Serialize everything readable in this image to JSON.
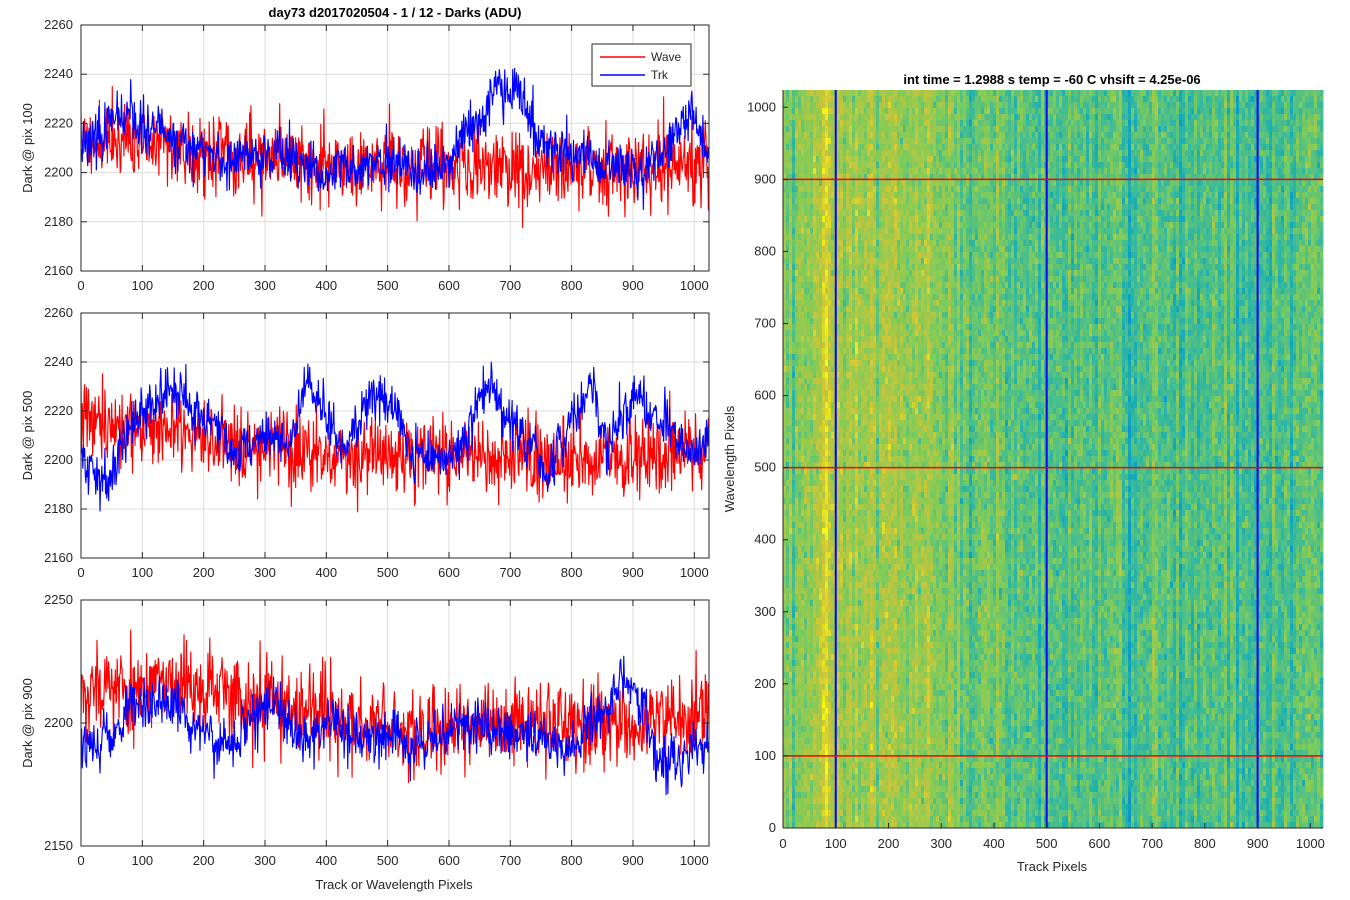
{
  "window": {
    "title": "day73 d2017020504 - 1 / 12 - Darks (ADU)"
  },
  "chart_data": [
    {
      "type": "line",
      "title": "day73 d2017020504 - 1 / 12 - Darks (ADU)",
      "xlabel": "",
      "ylabel": "Dark @ pix 100",
      "xlim": [
        0,
        1024
      ],
      "ylim": [
        2160,
        2260
      ],
      "xticks": [
        0,
        100,
        200,
        300,
        400,
        500,
        600,
        700,
        800,
        900,
        1000
      ],
      "yticks": [
        2160,
        2180,
        2200,
        2220,
        2240,
        2260
      ],
      "grid": true,
      "legend": "top-right",
      "series": [
        {
          "name": "Wave",
          "color": "#ff0000",
          "mean": 2206,
          "noise": 8,
          "seed": 11,
          "drift": 4,
          "walk": 0.15,
          "highlights": [
            [
              0.0,
              2214
            ],
            [
              0.1,
              2212
            ],
            [
              0.2,
              2209
            ],
            [
              0.3,
              2206
            ],
            [
              0.4,
              2204
            ],
            [
              0.5,
              2203
            ],
            [
              0.6,
              2203
            ],
            [
              0.7,
              2202
            ],
            [
              0.8,
              2202
            ],
            [
              0.9,
              2201
            ],
            [
              1.0,
              2203
            ]
          ]
        },
        {
          "name": "Trk",
          "color": "#0000ff",
          "mean": 2208,
          "noise": 5,
          "seed": 23,
          "drift": 6,
          "walk": 0.45,
          "highlights": [
            [
              0.0,
              2212
            ],
            [
              0.05,
              2220
            ],
            [
              0.12,
              2216
            ],
            [
              0.17,
              2212
            ],
            [
              0.23,
              2203
            ],
            [
              0.28,
              2208
            ],
            [
              0.33,
              2207
            ],
            [
              0.38,
              2197
            ],
            [
              0.45,
              2203
            ],
            [
              0.5,
              2202
            ],
            [
              0.53,
              2195
            ],
            [
              0.59,
              2205
            ],
            [
              0.64,
              2224
            ],
            [
              0.66,
              2238
            ],
            [
              0.7,
              2232
            ],
            [
              0.73,
              2210
            ],
            [
              0.8,
              2205
            ],
            [
              0.88,
              2200
            ],
            [
              0.93,
              2210
            ],
            [
              0.97,
              2228
            ],
            [
              1.0,
              2208
            ]
          ]
        }
      ]
    },
    {
      "type": "line",
      "title": "",
      "xlabel": "",
      "ylabel": "Dark @ pix 500",
      "xlim": [
        0,
        1024
      ],
      "ylim": [
        2160,
        2260
      ],
      "xticks": [
        0,
        100,
        200,
        300,
        400,
        500,
        600,
        700,
        800,
        900,
        1000
      ],
      "yticks": [
        2160,
        2180,
        2200,
        2220,
        2240,
        2260
      ],
      "grid": true,
      "series": [
        {
          "name": "Wave",
          "color": "#ff0000",
          "mean": 2204,
          "noise": 8,
          "seed": 37,
          "drift": 4,
          "walk": 0.15,
          "highlights": [
            [
              0.0,
              2216
            ],
            [
              0.1,
              2214
            ],
            [
              0.2,
              2210
            ],
            [
              0.3,
              2206
            ],
            [
              0.4,
              2203
            ],
            [
              0.5,
              2202
            ],
            [
              0.6,
              2201
            ],
            [
              0.7,
              2200
            ],
            [
              0.8,
              2200
            ],
            [
              0.9,
              2200
            ],
            [
              1.0,
              2202
            ]
          ]
        },
        {
          "name": "Trk",
          "color": "#0000ff",
          "mean": 2210,
          "noise": 5,
          "seed": 41,
          "drift": 6,
          "walk": 0.45,
          "highlights": [
            [
              0.0,
              2200
            ],
            [
              0.03,
              2192
            ],
            [
              0.08,
              2214
            ],
            [
              0.14,
              2228
            ],
            [
              0.18,
              2222
            ],
            [
              0.24,
              2205
            ],
            [
              0.29,
              2208
            ],
            [
              0.33,
              2205
            ],
            [
              0.36,
              2232
            ],
            [
              0.39,
              2220
            ],
            [
              0.42,
              2200
            ],
            [
              0.46,
              2225
            ],
            [
              0.5,
              2224
            ],
            [
              0.53,
              2200
            ],
            [
              0.58,
              2200
            ],
            [
              0.62,
              2215
            ],
            [
              0.65,
              2232
            ],
            [
              0.7,
              2210
            ],
            [
              0.74,
              2196
            ],
            [
              0.78,
              2215
            ],
            [
              0.81,
              2230
            ],
            [
              0.84,
              2205
            ],
            [
              0.89,
              2230
            ],
            [
              0.92,
              2210
            ],
            [
              0.97,
              2205
            ],
            [
              1.0,
              2210
            ]
          ]
        }
      ]
    },
    {
      "type": "line",
      "title": "",
      "xlabel": "Track or Wavelength Pixels",
      "ylabel": "Dark @ pix 900",
      "xlim": [
        0,
        1024
      ],
      "ylim": [
        2150,
        2250
      ],
      "xticks": [
        0,
        100,
        200,
        300,
        400,
        500,
        600,
        700,
        800,
        900,
        1000
      ],
      "yticks": [
        2150,
        2200,
        2250
      ],
      "grid": true,
      "series": [
        {
          "name": "Wave",
          "color": "#ff0000",
          "mean": 2205,
          "noise": 9,
          "seed": 53,
          "drift": 4,
          "walk": 0.15,
          "highlights": [
            [
              0.0,
              2214
            ],
            [
              0.1,
              2215
            ],
            [
              0.2,
              2213
            ],
            [
              0.3,
              2208
            ],
            [
              0.4,
              2202
            ],
            [
              0.5,
              2198
            ],
            [
              0.6,
              2199
            ],
            [
              0.7,
              2200
            ],
            [
              0.8,
              2199
            ],
            [
              0.9,
              2200
            ],
            [
              1.0,
              2204
            ]
          ]
        },
        {
          "name": "Trk",
          "color": "#0000ff",
          "mean": 2196,
          "noise": 5,
          "seed": 67,
          "drift": 6,
          "walk": 0.45,
          "highlights": [
            [
              0.0,
              2190
            ],
            [
              0.05,
              2192
            ],
            [
              0.08,
              2207
            ],
            [
              0.13,
              2205
            ],
            [
              0.18,
              2198
            ],
            [
              0.23,
              2188
            ],
            [
              0.28,
              2205
            ],
            [
              0.31,
              2205
            ],
            [
              0.35,
              2195
            ],
            [
              0.4,
              2200
            ],
            [
              0.45,
              2193
            ],
            [
              0.5,
              2196
            ],
            [
              0.55,
              2188
            ],
            [
              0.6,
              2200
            ],
            [
              0.66,
              2198
            ],
            [
              0.72,
              2195
            ],
            [
              0.78,
              2188
            ],
            [
              0.84,
              2208
            ],
            [
              0.86,
              2220
            ],
            [
              0.9,
              2208
            ],
            [
              0.92,
              2180
            ],
            [
              0.96,
              2190
            ],
            [
              1.0,
              2195
            ]
          ]
        }
      ]
    },
    {
      "type": "heatmap",
      "title": "int time = 1.2988 s    temp = -60 C    vhsift = 4.25e-06",
      "xlabel": "Track Pixels",
      "ylabel": "Wavelength Pixels",
      "xlim": [
        0,
        1024
      ],
      "ylim": [
        0,
        1024
      ],
      "xticks": [
        0,
        100,
        200,
        300,
        400,
        500,
        600,
        700,
        800,
        900,
        1000
      ],
      "yticks": [
        0,
        100,
        200,
        300,
        400,
        500,
        600,
        700,
        800,
        900,
        1000
      ],
      "colormap": "parula",
      "column_gradient": [
        [
          0,
          0.62
        ],
        [
          0.05,
          0.72
        ],
        [
          0.15,
          0.74
        ],
        [
          0.3,
          0.66
        ],
        [
          0.45,
          0.58
        ],
        [
          0.6,
          0.55
        ],
        [
          0.75,
          0.56
        ],
        [
          0.9,
          0.56
        ],
        [
          1.0,
          0.6
        ]
      ],
      "vertical_markers": {
        "color": "#0000ff",
        "x": [
          100,
          500,
          900
        ]
      },
      "horizontal_markers": {
        "color": "#ff0000",
        "y": [
          100,
          500,
          900
        ]
      }
    }
  ]
}
